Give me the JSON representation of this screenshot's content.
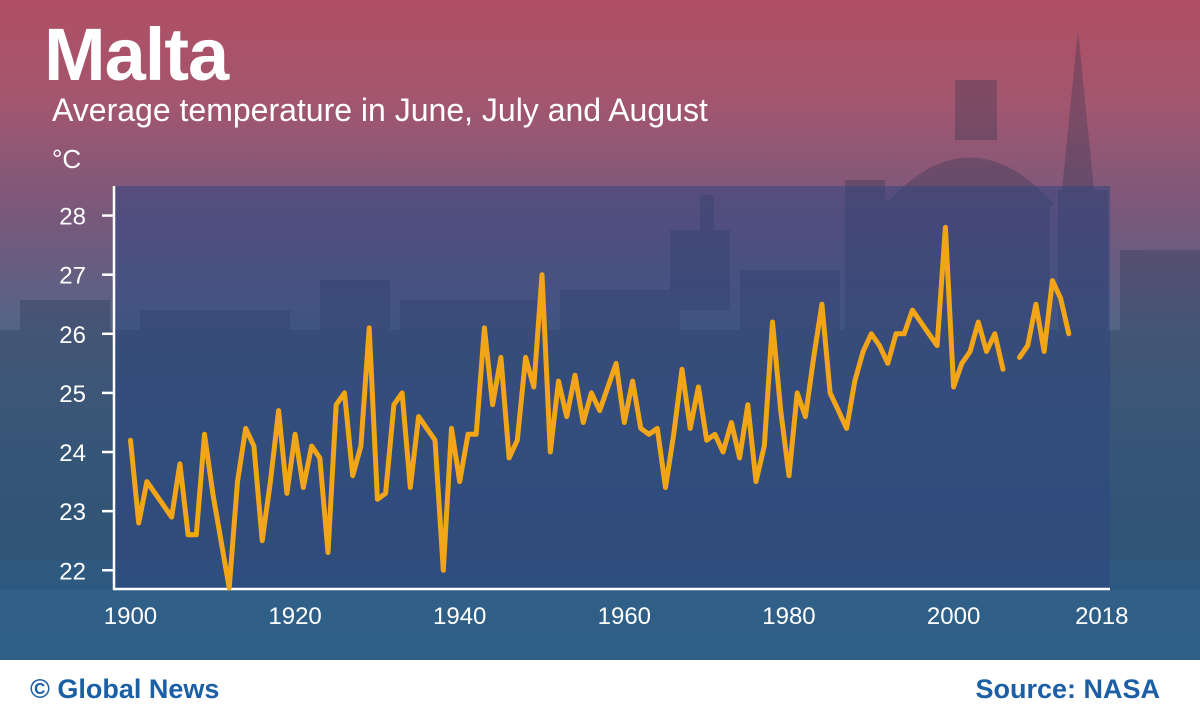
{
  "title": "Malta",
  "subtitle": "Average temperature in June, July and August",
  "unit_label": "°C",
  "footer": {
    "credit": "© Global News",
    "source": "Source: NASA"
  },
  "colors": {
    "line": "#f2a516",
    "footer_text": "#1c5fa5",
    "background_top": "#b04f63",
    "background_bottom": "#2f5f85"
  },
  "chart_data": {
    "type": "line",
    "title": "Malta",
    "subtitle": "Average temperature in June, July and August",
    "ylabel": "°C",
    "xlim": [
      1898,
      2019
    ],
    "ylim": [
      21.7,
      28.5
    ],
    "x_ticks": [
      1900,
      1920,
      1940,
      1960,
      1980,
      2000,
      2018
    ],
    "y_ticks": [
      22,
      23,
      24,
      25,
      26,
      27,
      28
    ],
    "grid": false,
    "series": [
      {
        "segments": [
          {
            "x": [
              1900,
              1901,
              1902,
              1903,
              1904,
              1905,
              1906,
              1907,
              1908,
              1909,
              1910,
              1911,
              1912,
              1913,
              1914,
              1915,
              1916,
              1917,
              1918,
              1919,
              1920,
              1921,
              1922,
              1923,
              1924,
              1925,
              1926,
              1927,
              1928,
              1929,
              1930,
              1931,
              1932,
              1933,
              1934,
              1935,
              1936,
              1937,
              1938,
              1939,
              1940,
              1941,
              1942,
              1943,
              1944,
              1945,
              1946,
              1947,
              1948,
              1949,
              1950,
              1951,
              1952,
              1953,
              1954,
              1955,
              1956,
              1957,
              1958,
              1959,
              1960,
              1961,
              1962,
              1963,
              1964,
              1965,
              1966,
              1967,
              1968,
              1969,
              1970,
              1971,
              1972,
              1973,
              1974,
              1975,
              1976,
              1977,
              1978,
              1979,
              1980,
              1981,
              1982,
              1983,
              1984,
              1985,
              1986,
              1987,
              1988,
              1989,
              1990,
              1991,
              1992,
              1993,
              1994,
              1995,
              1996,
              1997,
              1998,
              1999,
              2000,
              2001,
              2002,
              2003,
              2004,
              2005,
              2006
            ],
            "y": [
              24.2,
              22.8,
              23.5,
              23.3,
              23.1,
              22.9,
              23.8,
              22.6,
              22.6,
              24.3,
              23.3,
              22.5,
              21.7,
              23.5,
              24.4,
              24.1,
              22.5,
              23.5,
              24.7,
              23.3,
              24.3,
              23.4,
              24.1,
              23.9,
              22.3,
              24.8,
              25.0,
              23.6,
              24.1,
              26.1,
              23.2,
              23.3,
              24.8,
              25.0,
              23.4,
              24.6,
              24.4,
              24.2,
              22.0,
              24.4,
              23.5,
              24.3,
              24.3,
              26.1,
              24.8,
              25.6,
              23.9,
              24.2,
              25.6,
              25.1,
              27.0,
              24.0,
              25.2,
              24.6,
              25.3,
              24.5,
              25.0,
              24.7,
              25.1,
              25.5,
              24.5,
              25.2,
              24.4,
              24.3,
              24.4,
              23.4,
              24.3,
              25.4,
              24.4,
              25.1,
              24.2,
              24.3,
              24.0,
              24.5,
              23.9,
              24.8,
              23.5,
              24.1,
              26.2,
              24.7,
              23.6,
              25.0,
              24.6,
              25.6,
              26.5,
              25.0,
              24.7,
              24.4,
              25.2,
              25.7,
              26.0,
              25.8,
              25.5,
              26.0,
              26.0,
              26.4,
              26.2,
              26.0,
              25.8,
              27.8,
              25.1,
              25.5,
              25.7,
              26.2,
              25.7,
              26.0,
              25.4
            ]
          },
          {
            "x": [
              2008,
              2009,
              2010,
              2011,
              2012,
              2013,
              2014
            ],
            "y": [
              25.6,
              25.8,
              26.5,
              25.7,
              26.9,
              26.6,
              26.0
            ]
          }
        ]
      }
    ]
  }
}
